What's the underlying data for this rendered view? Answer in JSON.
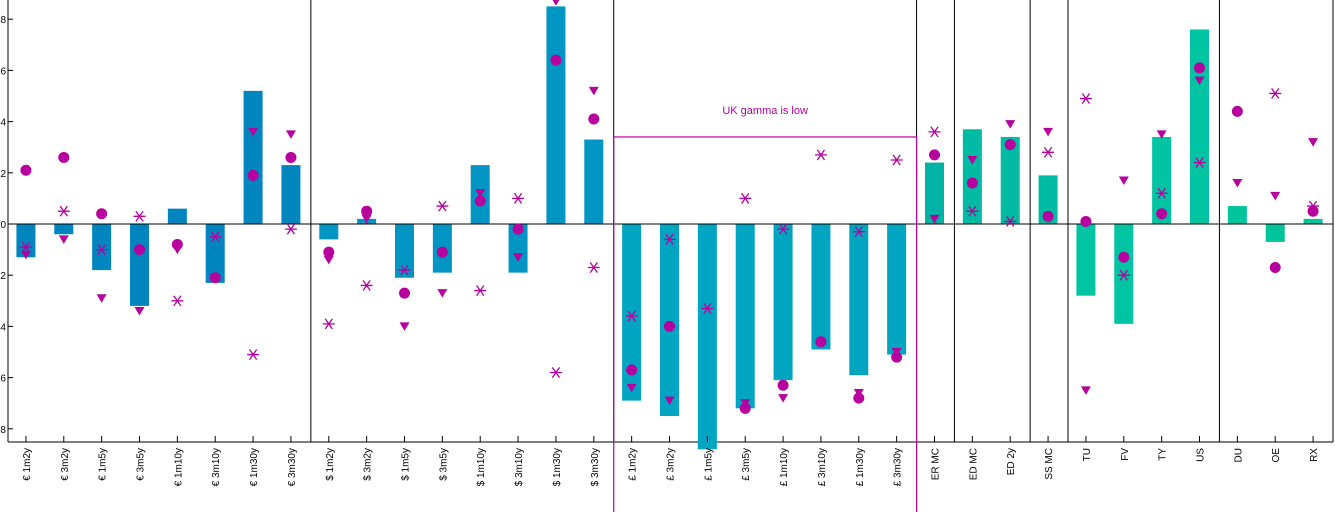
{
  "chart_data": {
    "type": "bar",
    "categories": [
      "€ 1m2y",
      "€ 3m2y",
      "€ 1m5y",
      "€ 3m5y",
      "€ 1m10y",
      "€ 3m10y",
      "€ 1m30y",
      "€ 3m30y",
      "$ 1m2y",
      "$ 3m2y",
      "$ 1m5y",
      "$ 3m5y",
      "$ 1m10y",
      "$ 3m10y",
      "$ 1m30y",
      "$ 3m30y",
      "£ 1m2y",
      "£ 3m2y",
      "£ 1m5y",
      "£ 3m5y",
      "£ 1m10y",
      "£ 3m10y",
      "£ 1m30y",
      "£ 3m30y",
      "ER MC",
      "ED MC",
      "ED 2y",
      "SS MC",
      "TU",
      "FV",
      "TY",
      "US",
      "DU",
      "OE",
      "RX"
    ],
    "ylim": [
      -8.8,
      8.8
    ],
    "yticks": [
      -8,
      -6,
      -4,
      -2,
      0,
      2,
      4,
      6,
      8
    ],
    "series": [
      {
        "values": [
          -1.3,
          -0.4,
          -1.8,
          -3.2,
          0.6,
          -2.3,
          5.2,
          2.3,
          -0.6,
          0.2,
          -2.1,
          -1.9,
          2.3,
          -1.9,
          8.5,
          3.3,
          -6.9,
          -7.5,
          -8.8,
          -7.2,
          -6.1,
          -4.9,
          -5.9,
          -5.1,
          2.4,
          3.7,
          3.4,
          1.9,
          -2.8,
          -3.9,
          3.4,
          7.6,
          0.7,
          -0.7,
          0.2
        ],
        "colors": [
          "#0085bf",
          "#0085bf",
          "#0085bf",
          "#0085bf",
          "#0085bf",
          "#0085bf",
          "#0085bf",
          "#0085bf",
          "#0095c3",
          "#0095c3",
          "#0095c3",
          "#0095c3",
          "#0095c3",
          "#0095c3",
          "#0095c3",
          "#0095c3",
          "#00a5c1",
          "#00a5c1",
          "#00a5c1",
          "#00a5c1",
          "#00a5c1",
          "#00a5c1",
          "#00a5c1",
          "#00a5c1",
          "#00b3a6",
          "#00bba4",
          "#00bba4",
          "#00bba4",
          "#00c4a2",
          "#00c4a2",
          "#00c4a2",
          "#00c4a2",
          "#00c49c",
          "#00c49c",
          "#00c49c"
        ]
      },
      {
        "marker": "circle",
        "values": [
          2.1,
          2.6,
          0.4,
          -1.0,
          -0.8,
          -2.1,
          1.9,
          2.6,
          -1.1,
          0.5,
          -2.7,
          -1.1,
          0.9,
          -0.2,
          6.4,
          4.1,
          -5.7,
          -4.0,
          null,
          -7.2,
          -6.3,
          -4.6,
          -6.8,
          -5.2,
          2.7,
          1.6,
          3.1,
          0.3,
          0.1,
          -1.3,
          0.4,
          6.1,
          4.4,
          -1.7,
          0.5
        ]
      },
      {
        "marker": "triangle-down",
        "values": [
          -1.2,
          -0.6,
          -2.9,
          -3.4,
          -1.0,
          -2.1,
          3.6,
          3.5,
          -1.4,
          0.2,
          -4.0,
          -2.7,
          1.2,
          -1.3,
          8.7,
          5.2,
          -6.4,
          -6.9,
          null,
          -7.0,
          -6.8,
          null,
          -6.6,
          -5.0,
          0.2,
          2.5,
          3.9,
          3.6,
          -6.5,
          1.7,
          3.5,
          5.6,
          1.6,
          1.1,
          3.2
        ]
      },
      {
        "marker": "asterisk",
        "values": [
          -0.9,
          0.5,
          -1.0,
          0.3,
          -3.0,
          -0.5,
          -5.1,
          -0.2,
          -3.9,
          -2.4,
          -1.8,
          0.7,
          -2.6,
          1.0,
          -5.8,
          -1.7,
          -3.6,
          -0.6,
          -3.3,
          1.0,
          -0.2,
          2.7,
          -0.3,
          2.5,
          3.6,
          0.5,
          0.1,
          2.8,
          4.9,
          -2.0,
          1.2,
          2.4,
          null,
          5.1,
          0.7
        ]
      }
    ],
    "group_separators_after": [
      7,
      15,
      23,
      24,
      26,
      27,
      31
    ],
    "highlight_box": {
      "from_category": 16,
      "to_category": 23,
      "y_top": 3.4
    },
    "annotation": "UK gamma is low",
    "marker_color": "#b8009e",
    "grid": false,
    "legend": "none"
  }
}
